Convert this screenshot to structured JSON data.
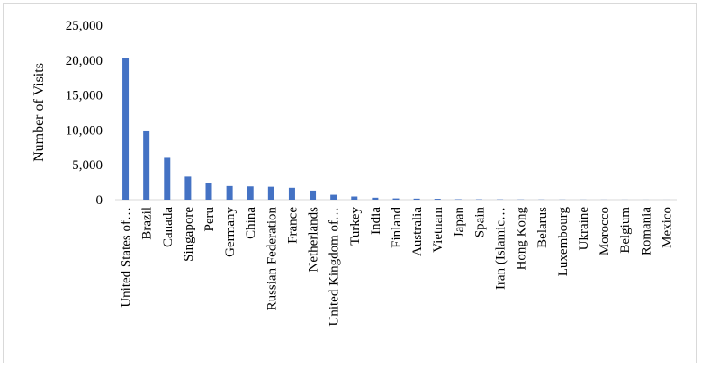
{
  "chart_data": {
    "type": "bar",
    "title": "",
    "xlabel": "",
    "ylabel": "Number of Visits",
    "ylim": [
      0,
      25000
    ],
    "yticks": [
      "0",
      "5,000",
      "10,000",
      "15,000",
      "20,000",
      "25,000"
    ],
    "grid": false,
    "legend": "none",
    "bar_color": "#4472c4",
    "categories": [
      "United States of…",
      "Brazil",
      "Canada",
      "Singapore",
      "Peru",
      "Germany",
      "China",
      "Russian Federation",
      "France",
      "Netherlands",
      "United Kingdom of…",
      "Turkey",
      "India",
      "Finland",
      "Australia",
      "Vietnam",
      "Japan",
      "Spain",
      "Iran (Islamic…",
      "Hong Kong",
      "Belarus",
      "Luxembourg",
      "Ukraine",
      "Morocco",
      "Belgium",
      "Romania",
      "Mexico"
    ],
    "values": [
      20300,
      9800,
      6000,
      3300,
      2350,
      1950,
      1900,
      1850,
      1700,
      1300,
      700,
      450,
      280,
      180,
      150,
      120,
      60,
      50,
      40,
      30,
      25,
      20,
      15,
      12,
      10,
      8,
      5
    ]
  }
}
